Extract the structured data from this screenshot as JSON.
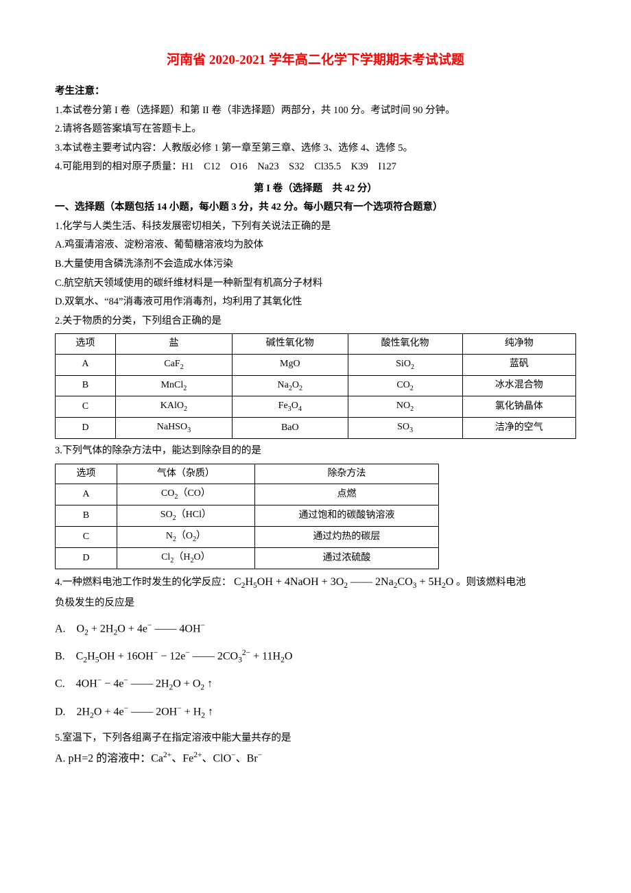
{
  "title": "河南省 2020-2021 学年高二化学下学期期末考试试题",
  "notice_header": "考生注意：",
  "notices": [
    "1.本试卷分第 I 卷（选择题）和第 II 卷（非选择题）两部分，共 100 分。考试时间 90 分钟。",
    "2.请将各题答案填写在答题卡上。",
    "3.本试卷主要考试内容：人教版必修 1 第一章至第三章、选修 3、选修 4、选修 5。",
    "4.可能用到的相对原子质量：H1　C12　O16　Na23　S32　Cl35.5　K39　I127"
  ],
  "part1_title": "第 I 卷（选择题　共 42 分）",
  "sec1_title": "一、选择题（本题包括 14 小题，每小题 3 分，共 42 分。每小题只有一个选项符合题意）",
  "q1": {
    "stem": "1.化学与人类生活、科技发展密切相关，下列有关说法正确的是",
    "A": "A.鸡蛋清溶液、淀粉溶液、葡萄糖溶液均为胶体",
    "B": "B.大量使用含磷洗涤剂不会造成水体污染",
    "C": "C.航空航天领域使用的碳纤维材料是一种新型有机高分子材料",
    "D": "D.双氧水、“84”消毒液可用作消毒剂，均利用了其氧化性"
  },
  "q2": {
    "stem": "2.关于物质的分类，下列组合正确的是",
    "headers": [
      "选项",
      "盐",
      "碱性氧化物",
      "酸性氧化物",
      "纯净物"
    ],
    "rows": [
      [
        "A",
        "CaF<sub>2</sub>",
        "MgO",
        "SiO<sub>2</sub>",
        "蓝矾"
      ],
      [
        "B",
        "MnCl<sub>2</sub>",
        "Na<sub>2</sub>O<sub>2</sub>",
        "CO<sub>2</sub>",
        "冰水混合物"
      ],
      [
        "C",
        "KAlO<sub>2</sub>",
        "Fe<sub>3</sub>O<sub>4</sub>",
        "NO<sub>2</sub>",
        "氯化钠晶体"
      ],
      [
        "D",
        "NaHSO<sub>3</sub>",
        "BaO",
        "SO<sub>3</sub>",
        "洁净的空气"
      ]
    ]
  },
  "q3": {
    "stem": "3.下列气体的除杂方法中，能达到除杂目的的是",
    "headers": [
      "选项",
      "气体（杂质）",
      "除杂方法"
    ],
    "rows": [
      [
        "A",
        "CO<sub>2</sub>（CO）",
        "点燃"
      ],
      [
        "B",
        "SO<sub>2</sub>（HCl）",
        "通过饱和的碳酸钠溶液"
      ],
      [
        "C",
        "N<sub>2</sub>（O<sub>2</sub>）",
        "通过灼热的碳层"
      ],
      [
        "D",
        "Cl<sub>2</sub>（H<sub>2</sub>O）",
        "通过浓硫酸"
      ]
    ]
  },
  "q4": {
    "stem_pre": "4.一种燃料电池工作时发生的化学反应：",
    "eq": "C<sub>2</sub>H<sub>5</sub>OH + 4NaOH + 3O<sub>2</sub> —— 2Na<sub>2</sub>CO<sub>3</sub> + 5H<sub>2</sub>O",
    "stem_post": " 。则该燃料电池",
    "line2": "负极发生的反应是",
    "A": "A.　O<sub>2</sub> + 2H<sub>2</sub>O + 4e<sup>−</sup> —— 4OH<sup>−</sup>",
    "B": "B.　C<sub>2</sub>H<sub>5</sub>OH + 16OH<sup>−</sup> − 12e<sup>−</sup> —— 2CO<sub>3</sub><sup>2−</sup> + 11H<sub>2</sub>O",
    "C": "C.　4OH<sup>−</sup> − 4e<sup>−</sup> —— 2H<sub>2</sub>O + O<sub>2</sub> ↑",
    "D": "D.　2H<sub>2</sub>O + 4e<sup>−</sup> —— 2OH<sup>−</sup> + H<sub>2</sub> ↑"
  },
  "q5": {
    "stem": "5.室温下，下列各组离子在指定溶液中能大量共存的是",
    "A": "A. pH=2 的溶液中：Ca<sup>2+</sup>、Fe<sup>2+</sup>、ClO<sup>−</sup>、Br<sup>−</sup>"
  }
}
